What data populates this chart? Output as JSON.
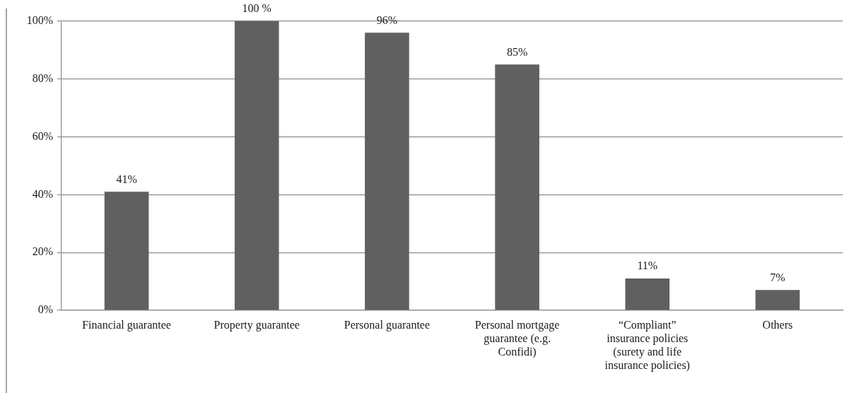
{
  "chart_data": {
    "type": "bar",
    "categories": [
      "Financial guarantee",
      "Property guarantee",
      "Personal guarantee",
      "Personal mortgage guarantee (e.g. Confidi)",
      "“Compliant” insurance policies (surety and life insurance policies)",
      "Others"
    ],
    "values": [
      41,
      100,
      96,
      85,
      11,
      7
    ],
    "color": "#606060",
    "ylim": [
      0,
      100
    ],
    "yticks": [
      {
        "value": 0,
        "label": "0%"
      },
      {
        "value": 20,
        "label": "20%"
      },
      {
        "value": 40,
        "label": "40%"
      },
      {
        "value": 60,
        "label": "60%"
      },
      {
        "value": 80,
        "label": "80%"
      },
      {
        "value": 100,
        "label": "100%"
      }
    ],
    "grid": "y",
    "value_labels": [
      "41%",
      "100 %",
      "96%",
      "85%",
      "11%",
      "7%"
    ]
  }
}
